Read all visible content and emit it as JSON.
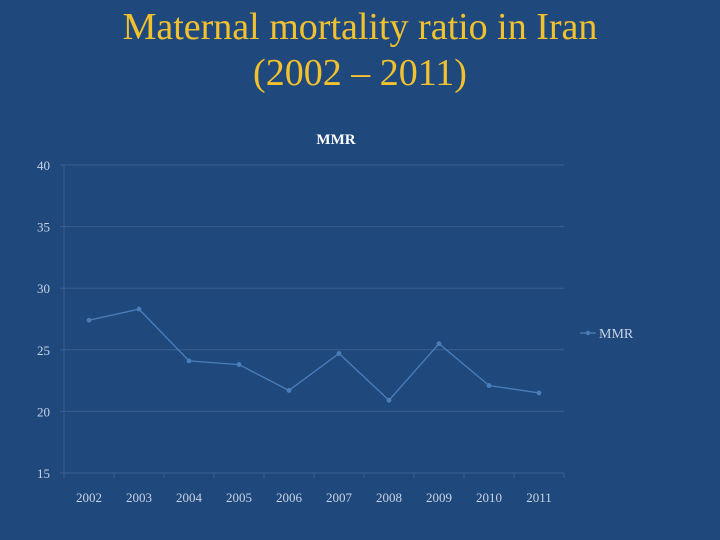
{
  "slide": {
    "title_line1": "Maternal mortality ratio in Iran",
    "title_line2": "(2002 – 2011)"
  },
  "colors": {
    "background": "#1f497d",
    "title": "#f2c12e",
    "series_line": "#4a7ebb",
    "grid": "#3a5f8f"
  },
  "chart_data": {
    "type": "line",
    "title": "MMR",
    "xlabel": "",
    "ylabel": "",
    "categories": [
      "2002",
      "2003",
      "2004",
      "2005",
      "2006",
      "2007",
      "2008",
      "2009",
      "2010",
      "2011"
    ],
    "series": [
      {
        "name": "MMR",
        "values": [
          27.4,
          28.3,
          24.1,
          23.8,
          21.7,
          24.7,
          20.9,
          25.5,
          22.1,
          21.5
        ]
      }
    ],
    "ylim": [
      15,
      40
    ],
    "yticks": [
      15,
      20,
      25,
      30,
      35,
      40
    ],
    "grid": true,
    "legend_position": "right"
  }
}
